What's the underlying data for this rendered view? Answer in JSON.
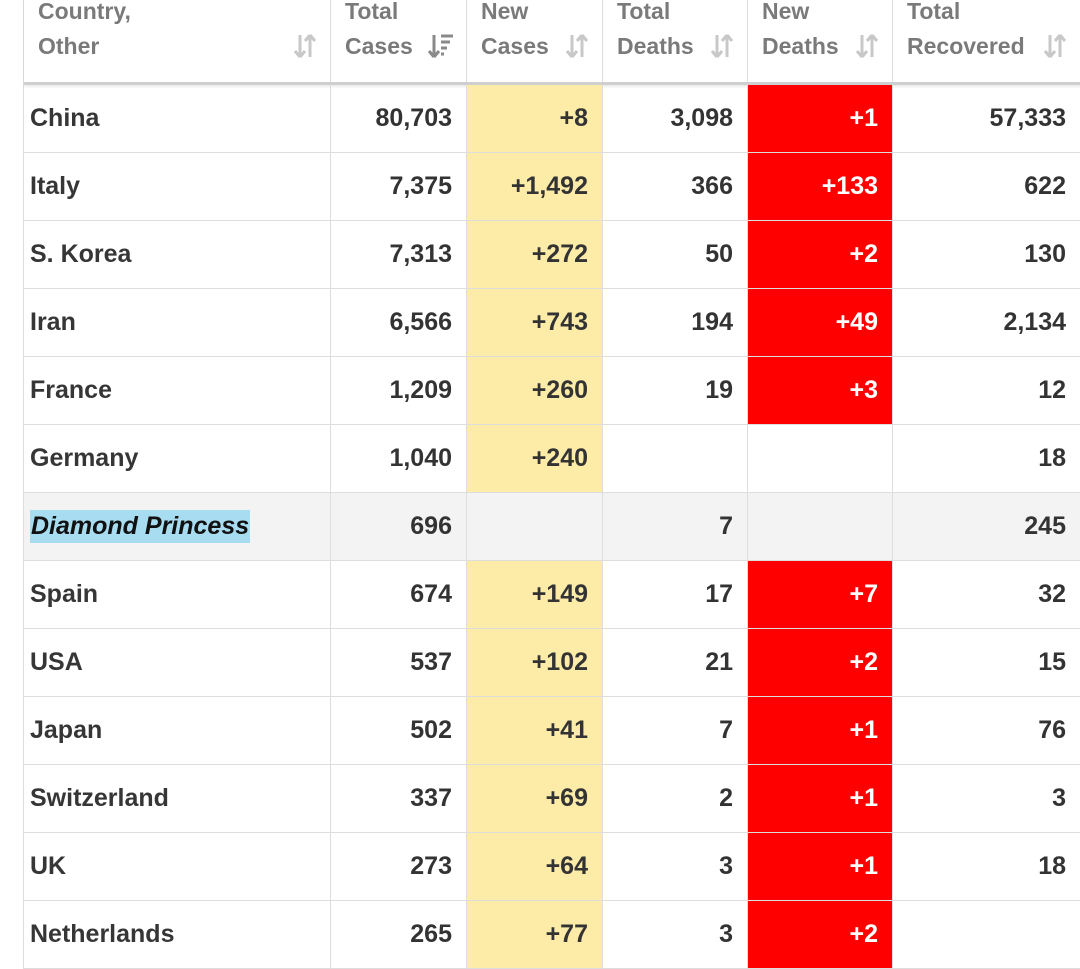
{
  "headers": [
    {
      "line1": "Country,",
      "line2": "Other"
    },
    {
      "line1": "Total",
      "line2": "Cases"
    },
    {
      "line1": "New",
      "line2": "Cases"
    },
    {
      "line1": "Total",
      "line2": "Deaths"
    },
    {
      "line1": "New",
      "line2": "Deaths"
    },
    {
      "line1": "Total",
      "line2": "Recovered"
    }
  ],
  "rows": [
    {
      "country": "China",
      "total_cases": "80,703",
      "new_cases": "+8",
      "total_deaths": "3,098",
      "new_deaths": "+1",
      "total_recovered": "57,333"
    },
    {
      "country": "Italy",
      "total_cases": "7,375",
      "new_cases": "+1,492",
      "total_deaths": "366",
      "new_deaths": "+133",
      "total_recovered": "622"
    },
    {
      "country": "S. Korea",
      "total_cases": "7,313",
      "new_cases": "+272",
      "total_deaths": "50",
      "new_deaths": "+2",
      "total_recovered": "130"
    },
    {
      "country": "Iran",
      "total_cases": "6,566",
      "new_cases": "+743",
      "total_deaths": "194",
      "new_deaths": "+49",
      "total_recovered": "2,134"
    },
    {
      "country": "France",
      "total_cases": "1,209",
      "new_cases": "+260",
      "total_deaths": "19",
      "new_deaths": "+3",
      "total_recovered": "12"
    },
    {
      "country": "Germany",
      "total_cases": "1,040",
      "new_cases": "+240",
      "total_deaths": "",
      "new_deaths": "",
      "total_recovered": "18"
    },
    {
      "country": "Diamond Princess",
      "total_cases": "696",
      "new_cases": "",
      "total_deaths": "7",
      "new_deaths": "",
      "total_recovered": "245",
      "highlighted": true
    },
    {
      "country": "Spain",
      "total_cases": "674",
      "new_cases": "+149",
      "total_deaths": "17",
      "new_deaths": "+7",
      "total_recovered": "32"
    },
    {
      "country": "USA",
      "total_cases": "537",
      "new_cases": "+102",
      "total_deaths": "21",
      "new_deaths": "+2",
      "total_recovered": "15"
    },
    {
      "country": "Japan",
      "total_cases": "502",
      "new_cases": "+41",
      "total_deaths": "7",
      "new_deaths": "+1",
      "total_recovered": "76"
    },
    {
      "country": "Switzerland",
      "total_cases": "337",
      "new_cases": "+69",
      "total_deaths": "2",
      "new_deaths": "+1",
      "total_recovered": "3"
    },
    {
      "country": "UK",
      "total_cases": "273",
      "new_cases": "+64",
      "total_deaths": "3",
      "new_deaths": "+1",
      "total_recovered": "18"
    },
    {
      "country": "Netherlands",
      "total_cases": "265",
      "new_cases": "+77",
      "total_deaths": "3",
      "new_deaths": "+2",
      "total_recovered": ""
    }
  ],
  "colors": {
    "new_cases_bg": "#fdeba8",
    "new_deaths_bg": "#ff0000",
    "selection": "#a8dcf0"
  },
  "sort_icon": "sort-arrows-icon",
  "active_sort_icon": "sort-descending-icon"
}
